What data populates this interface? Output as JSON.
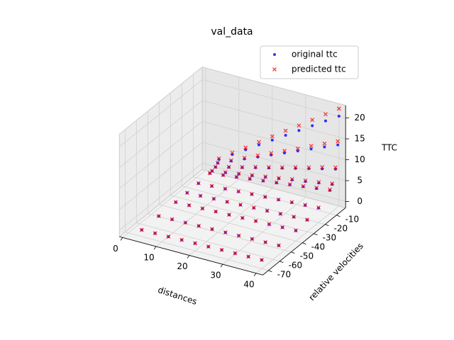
{
  "chart_data": {
    "type": "scatter3d",
    "title": "val_data",
    "x_label": "distances",
    "y_label": "relative velocities",
    "z_label": "TTC",
    "xlim": [
      -1,
      42
    ],
    "ylim": [
      -75,
      -2
    ],
    "zlim": [
      -1.5,
      23
    ],
    "xticks": [
      0,
      10,
      20,
      30,
      40
    ],
    "yticks": [
      -70,
      -60,
      -50,
      -40,
      -30,
      -20,
      -10
    ],
    "zticks": [
      0,
      5,
      10,
      15,
      20
    ],
    "grid": true,
    "legend": "upper right",
    "x": [
      4,
      8,
      12,
      16,
      20,
      24,
      28,
      32,
      36,
      40,
      4,
      8,
      12,
      16,
      20,
      24,
      28,
      32,
      36,
      40,
      4,
      8,
      12,
      16,
      20,
      24,
      28,
      32,
      36,
      40,
      4,
      8,
      12,
      16,
      20,
      24,
      28,
      32,
      36,
      40,
      4,
      8,
      12,
      16,
      20,
      24,
      28,
      32,
      36,
      40,
      4,
      8,
      12,
      16,
      20,
      24,
      28,
      32,
      36,
      40,
      4,
      8,
      12,
      16,
      20,
      24,
      28,
      32,
      36,
      40,
      4,
      8,
      12,
      16,
      20,
      24,
      28,
      32,
      36,
      40,
      4,
      8,
      12,
      16,
      20,
      24,
      28,
      32,
      36,
      40,
      4,
      8,
      12,
      16,
      20,
      24,
      28,
      32,
      36,
      40
    ],
    "y": [
      -2,
      -2,
      -2,
      -2,
      -2,
      -2,
      -2,
      -2,
      -2,
      -2,
      -3,
      -3,
      -3,
      -3,
      -3,
      -3,
      -3,
      -3,
      -3,
      -3,
      -5,
      -5,
      -5,
      -5,
      -5,
      -5,
      -5,
      -5,
      -5,
      -5,
      -8,
      -8,
      -8,
      -8,
      -8,
      -8,
      -8,
      -8,
      -8,
      -8,
      -10,
      -10,
      -10,
      -10,
      -10,
      -10,
      -10,
      -10,
      -10,
      -10,
      -20,
      -20,
      -20,
      -20,
      -20,
      -20,
      -20,
      -20,
      -20,
      -20,
      -30,
      -30,
      -30,
      -30,
      -30,
      -30,
      -30,
      -30,
      -30,
      -30,
      -40,
      -40,
      -40,
      -40,
      -40,
      -40,
      -40,
      -40,
      -40,
      -40,
      -55,
      -55,
      -55,
      -55,
      -55,
      -55,
      -55,
      -55,
      -55,
      -55,
      -70,
      -70,
      -70,
      -70,
      -70,
      -70,
      -70,
      -70,
      -70,
      -70
    ],
    "series": [
      {
        "name": "original ttc",
        "color": "#0000ff",
        "marker": "dot",
        "values": [
          2,
          4,
          6,
          8,
          10,
          12,
          14,
          16,
          18,
          20,
          1.33,
          2.67,
          4,
          5.33,
          6.67,
          8,
          9.33,
          10.67,
          12,
          13.33,
          0.8,
          1.6,
          2.4,
          3.2,
          4,
          4.8,
          5.6,
          6.4,
          7.2,
          8,
          0.5,
          1,
          1.5,
          2,
          2.5,
          3,
          3.5,
          4,
          4.5,
          5,
          0.4,
          0.8,
          1.2,
          1.6,
          2,
          2.4,
          2.8,
          3.2,
          3.6,
          4,
          0.2,
          0.4,
          0.6,
          0.8,
          1,
          1.2,
          1.4,
          1.6,
          1.8,
          2,
          0.13,
          0.27,
          0.4,
          0.53,
          0.67,
          0.8,
          0.93,
          1.07,
          1.2,
          1.33,
          0.1,
          0.2,
          0.3,
          0.4,
          0.5,
          0.6,
          0.7,
          0.8,
          0.9,
          1,
          0.07,
          0.15,
          0.22,
          0.29,
          0.36,
          0.44,
          0.51,
          0.58,
          0.65,
          0.73,
          0.06,
          0.11,
          0.17,
          0.23,
          0.29,
          0.34,
          0.4,
          0.46,
          0.51,
          0.57
        ]
      },
      {
        "name": "predicted ttc",
        "color": "#ff0000",
        "marker": "x",
        "values": [
          2.2,
          4.4,
          6.5,
          8.7,
          10.9,
          13.1,
          15.2,
          17.4,
          19.6,
          21.8,
          1.4,
          2.8,
          4.3,
          5.7,
          7.1,
          8.5,
          9.9,
          11.4,
          12.8,
          14.2,
          0.85,
          1.7,
          2.5,
          3.4,
          4.2,
          5,
          5.9,
          6.7,
          7.6,
          8.4,
          0.55,
          1.05,
          1.6,
          2.1,
          2.6,
          3.1,
          3.7,
          4.2,
          4.7,
          5.2,
          0.45,
          0.85,
          1.25,
          1.7,
          2.1,
          2.5,
          2.9,
          3.3,
          3.8,
          4.2,
          0.25,
          0.45,
          0.65,
          0.85,
          1.05,
          1.25,
          1.45,
          1.7,
          1.9,
          2.1,
          0.15,
          0.3,
          0.45,
          0.55,
          0.7,
          0.85,
          1,
          1.1,
          1.25,
          1.4,
          0.12,
          0.22,
          0.32,
          0.42,
          0.52,
          0.62,
          0.72,
          0.82,
          0.93,
          1.03,
          0.09,
          0.17,
          0.24,
          0.31,
          0.38,
          0.46,
          0.53,
          0.6,
          0.67,
          0.75,
          0.08,
          0.13,
          0.19,
          0.25,
          0.31,
          0.36,
          0.42,
          0.48,
          0.53,
          0.59
        ]
      }
    ]
  }
}
